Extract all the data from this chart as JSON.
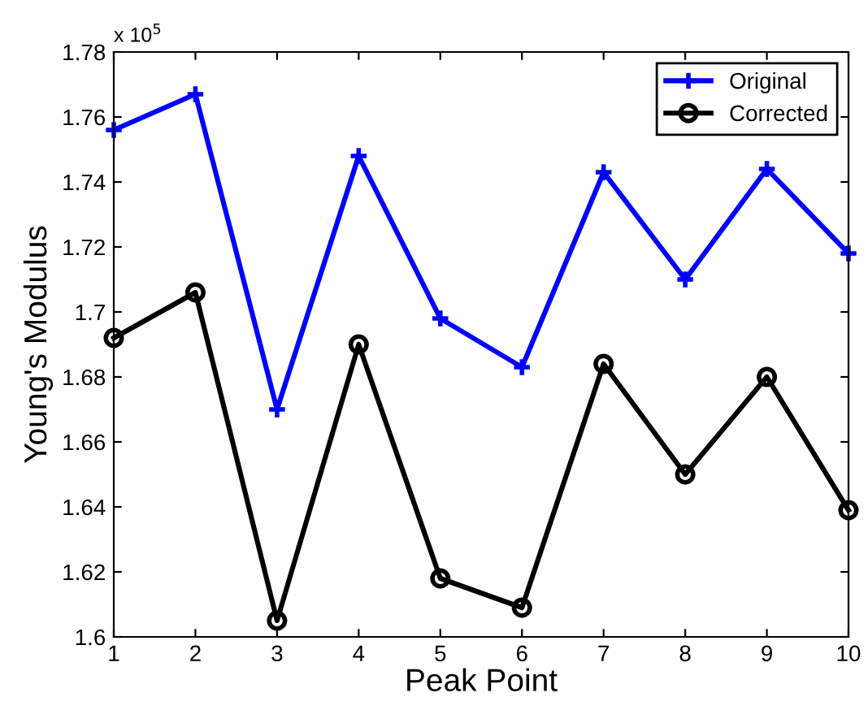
{
  "chart_data": {
    "type": "line",
    "xlabel": "Peak Point",
    "ylabel": "Young's Modulus",
    "x": [
      1,
      2,
      3,
      4,
      5,
      6,
      7,
      8,
      9,
      10
    ],
    "series": [
      {
        "name": "Original",
        "color": "#0000ff",
        "marker": "cross",
        "values": [
          1.756,
          1.767,
          1.67,
          1.748,
          1.698,
          1.683,
          1.743,
          1.71,
          1.744,
          1.718
        ]
      },
      {
        "name": "Corrected",
        "color": "#000000",
        "marker": "circle",
        "values": [
          1.692,
          1.706,
          1.605,
          1.69,
          1.618,
          1.609,
          1.684,
          1.65,
          1.68,
          1.639
        ]
      }
    ],
    "xlim": [
      1,
      10
    ],
    "xticks": [
      1,
      2,
      3,
      4,
      5,
      6,
      7,
      8,
      9,
      10
    ],
    "ylim": [
      1.6,
      1.78
    ],
    "yticks": [
      1.6,
      1.62,
      1.64,
      1.66,
      1.68,
      1.7,
      1.72,
      1.74,
      1.76,
      1.78
    ],
    "annotations": [
      "x 10$^{5}$"
    ],
    "grid": false,
    "legend": "top right",
    "line_style": "solid"
  }
}
